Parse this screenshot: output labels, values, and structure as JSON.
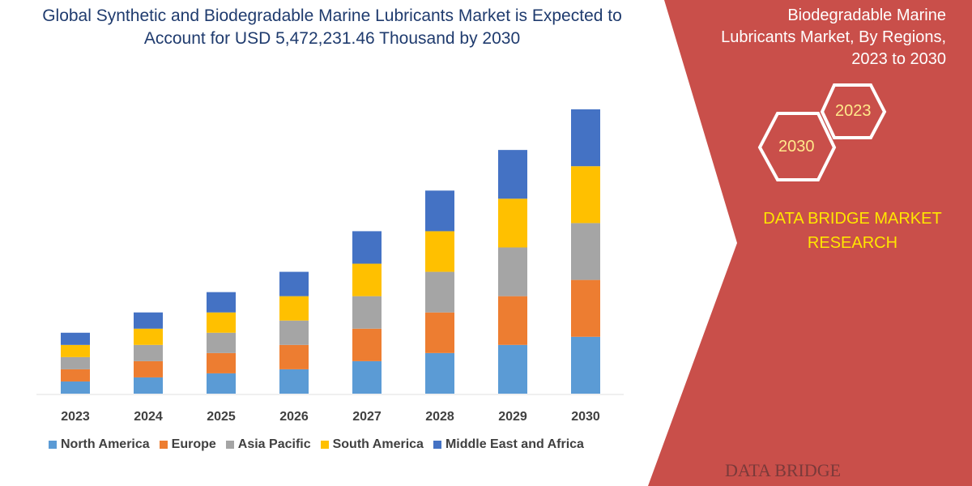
{
  "chart_data": {
    "type": "bar",
    "stacked": true,
    "title": "Global Synthetic and Biodegradable Marine Lubricants Market is Expected to Account for USD 5,472,231.46 Thousand by 2030",
    "categories": [
      "2023",
      "2024",
      "2025",
      "2026",
      "2027",
      "2028",
      "2029",
      "2030"
    ],
    "series": [
      {
        "name": "North America",
        "color": "#5b9bd5",
        "values": [
          15,
          20,
          25,
          30,
          40,
          50,
          60,
          70
        ]
      },
      {
        "name": "Europe",
        "color": "#ed7d31",
        "values": [
          15,
          20,
          25,
          30,
          40,
          50,
          60,
          70
        ]
      },
      {
        "name": "Asia Pacific",
        "color": "#a5a5a5",
        "values": [
          15,
          20,
          25,
          30,
          40,
          50,
          60,
          70
        ]
      },
      {
        "name": "South America",
        "color": "#ffc000",
        "values": [
          15,
          20,
          25,
          30,
          40,
          50,
          60,
          70
        ]
      },
      {
        "name": "Middle East and Africa",
        "color": "#4472c4",
        "values": [
          15,
          20,
          25,
          30,
          40,
          50,
          60,
          70
        ]
      }
    ],
    "ylim": [
      0,
      350
    ],
    "grid": false,
    "legend": "bottom"
  },
  "title_line1": "Global Synthetic and Biodegradable Marine",
  "title_line2": "Lubricants Market is Expected to Account for USD 5,472,231.46 Thousand by 2030",
  "side": {
    "title": "Biodegradable Marine Lubricants Market, By Regions, 2023 to 2030",
    "hex_a": "2023",
    "hex_b": "2030",
    "brand": "DATA BRIDGE MARKET RESEARCH",
    "logo": "DATA BRIDGE",
    "panel_color": "#c94f4a"
  }
}
